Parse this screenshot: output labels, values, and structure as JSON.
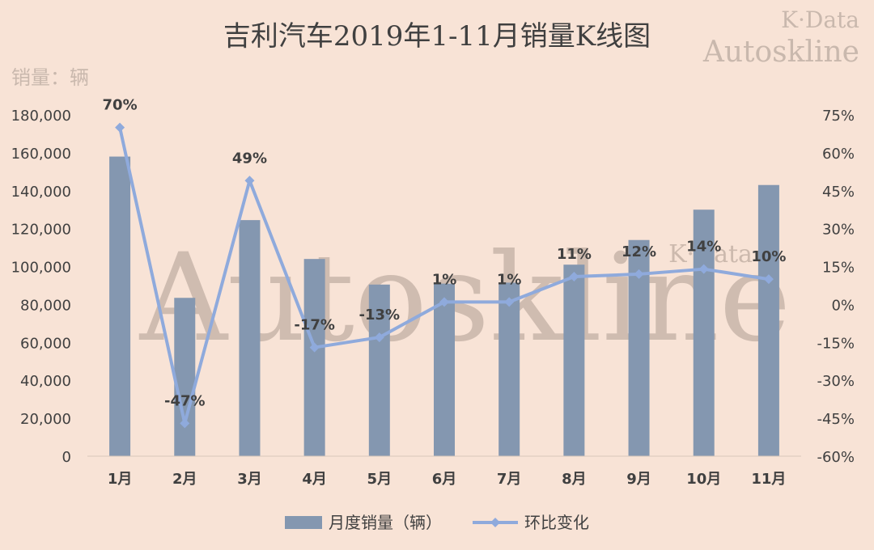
{
  "chart_data": {
    "type": "bar+line",
    "title": "吉利汽车2019年1-11月销量K线图",
    "unit_label": "销量：辆",
    "watermark_topright": [
      "K·Data",
      "Autoskline"
    ],
    "watermark_center": "Autoskline",
    "watermark_center_small": "K·Data",
    "categories": [
      "1月",
      "2月",
      "3月",
      "4月",
      "5月",
      "6月",
      "7月",
      "8月",
      "9月",
      "10月",
      "11月"
    ],
    "series": [
      {
        "name": "月度销量（辆）",
        "type": "bar",
        "axis": "left",
        "color": "#8497b0",
        "values": [
          158000,
          83500,
          124500,
          104000,
          90500,
          91000,
          91500,
          101000,
          114000,
          130000,
          143000
        ]
      },
      {
        "name": "环比变化",
        "type": "line",
        "axis": "right",
        "color": "#8faadc",
        "values": [
          70,
          -47,
          49,
          -17,
          -13,
          1,
          1,
          11,
          12,
          14,
          10
        ],
        "labels": [
          "70%",
          "-47%",
          "49%",
          "-17%",
          "-13%",
          "1%",
          "1%",
          "11%",
          "12%",
          "14%",
          "10%"
        ]
      }
    ],
    "y_left": {
      "range": [
        0,
        180000
      ],
      "ticks": [
        0,
        20000,
        40000,
        60000,
        80000,
        100000,
        120000,
        140000,
        160000,
        180000
      ],
      "tick_labels": [
        "0",
        "20,000",
        "40,000",
        "60,000",
        "80,000",
        "100,000",
        "120,000",
        "140,000",
        "160,000",
        "180,000"
      ]
    },
    "y_right": {
      "range": [
        -60,
        75
      ],
      "ticks": [
        -60,
        -45,
        -30,
        -15,
        0,
        15,
        30,
        45,
        60,
        75
      ],
      "tick_labels": [
        "-60%",
        "-45%",
        "-30%",
        "-15%",
        "0%",
        "15%",
        "30%",
        "45%",
        "60%",
        "75%"
      ]
    },
    "grid": false,
    "legend_position": "bottom-center"
  }
}
